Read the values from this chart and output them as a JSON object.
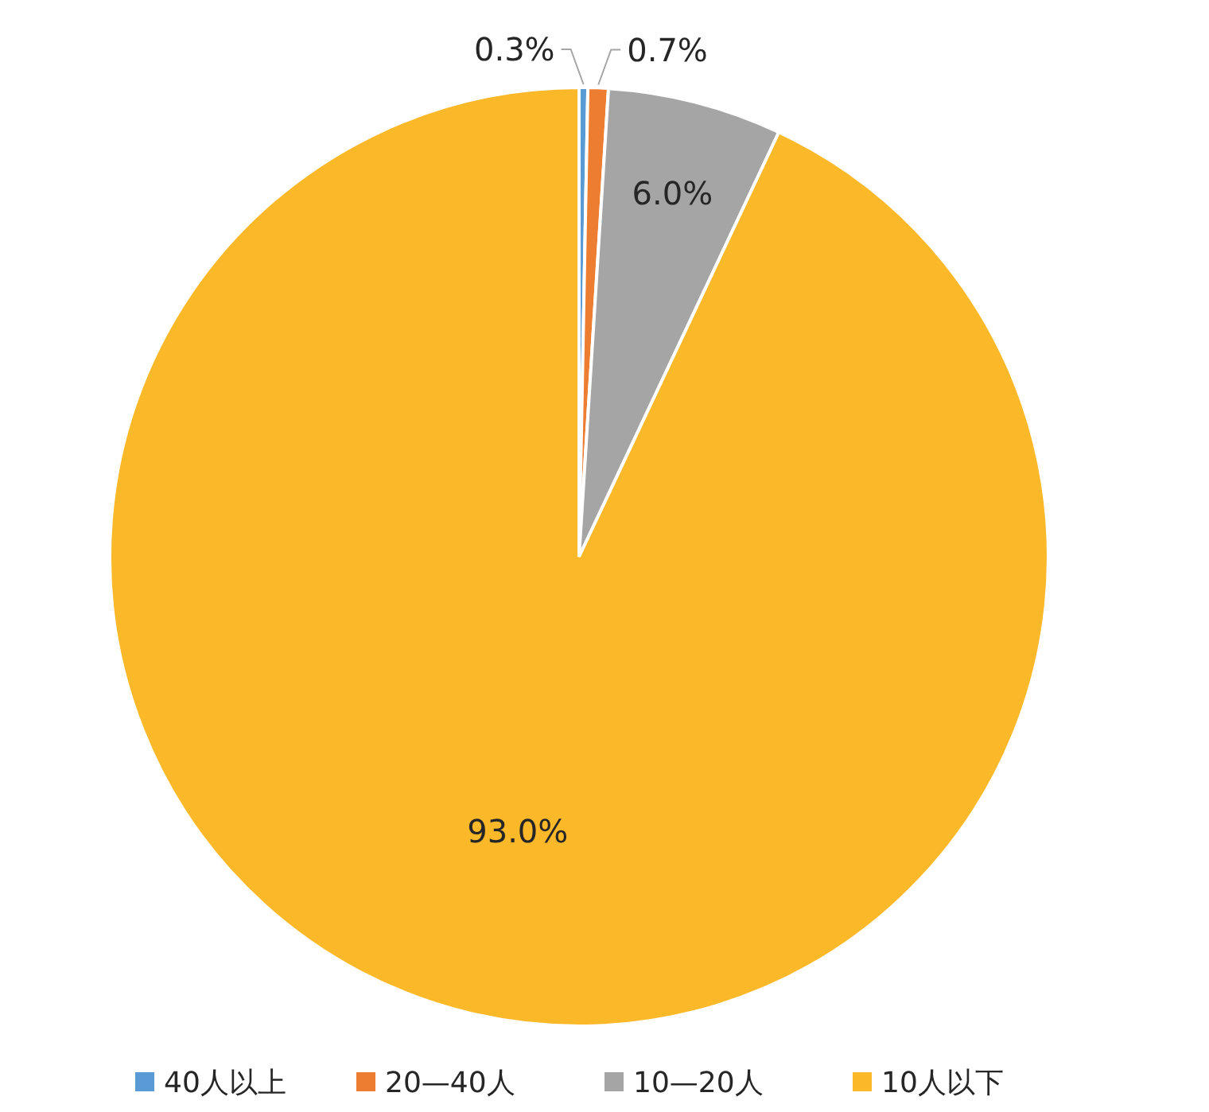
{
  "chart_data": {
    "type": "pie",
    "categories": [
      "40人以上",
      "20—40人",
      "10—20人",
      "10人以下"
    ],
    "values": [
      0.3,
      0.7,
      6.0,
      93.0
    ],
    "colors": [
      "#5b9bd5",
      "#ed7d31",
      "#a5a5a5",
      "#fbb829"
    ],
    "value_labels": [
      "0.3%",
      "0.7%",
      "6.0%",
      "93.0%"
    ],
    "legend": "bottom"
  }
}
